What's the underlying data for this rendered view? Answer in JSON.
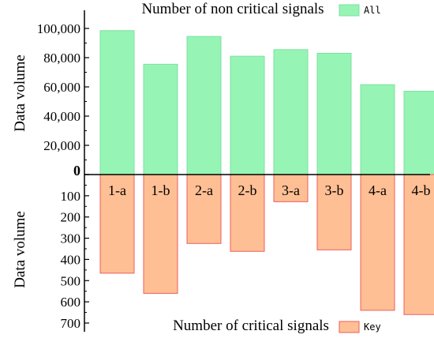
{
  "chart_data": [
    {
      "type": "bar",
      "title": "Number of non critical signals",
      "ylabel": "Data volume",
      "xlabel": "",
      "categories": [
        "1-a",
        "1-b",
        "2-a",
        "2-b",
        "3-a",
        "3-b",
        "4-a",
        "4-b"
      ],
      "series": [
        {
          "name": "All",
          "values": [
            98500,
            75500,
            94500,
            81000,
            85500,
            83000,
            61500,
            57000
          ]
        }
      ],
      "ylim": [
        0,
        110000
      ],
      "yticks": [
        0,
        20000,
        40000,
        60000,
        80000,
        100000
      ],
      "ytick_labels": [
        "0",
        "20,000",
        "40,000",
        "60,000",
        "80,000",
        "100,000"
      ],
      "legend": "top",
      "grid": false,
      "colors": {
        "fill": "#96f5b4",
        "stroke": "#7ee0a0"
      }
    },
    {
      "type": "bar",
      "title": "Number of critical signals",
      "ylabel": "Data volume",
      "xlabel": "",
      "categories": [
        "1-a",
        "1-b",
        "2-a",
        "2-b",
        "3-a",
        "3-b",
        "4-a",
        "4-b"
      ],
      "series": [
        {
          "name": "Key",
          "values": [
            465,
            560,
            325,
            362,
            128,
            355,
            640,
            660
          ]
        }
      ],
      "ylim": [
        0,
        700
      ],
      "inverted": true,
      "yticks": [
        0,
        100,
        200,
        300,
        400,
        500,
        600,
        700
      ],
      "ytick_labels": [
        "0",
        "100",
        "200",
        "300",
        "400",
        "500",
        "600",
        "700"
      ],
      "legend": "bottom",
      "grid": false,
      "colors": {
        "fill": "#ffbf94",
        "stroke": "#ef5d5d"
      }
    }
  ]
}
